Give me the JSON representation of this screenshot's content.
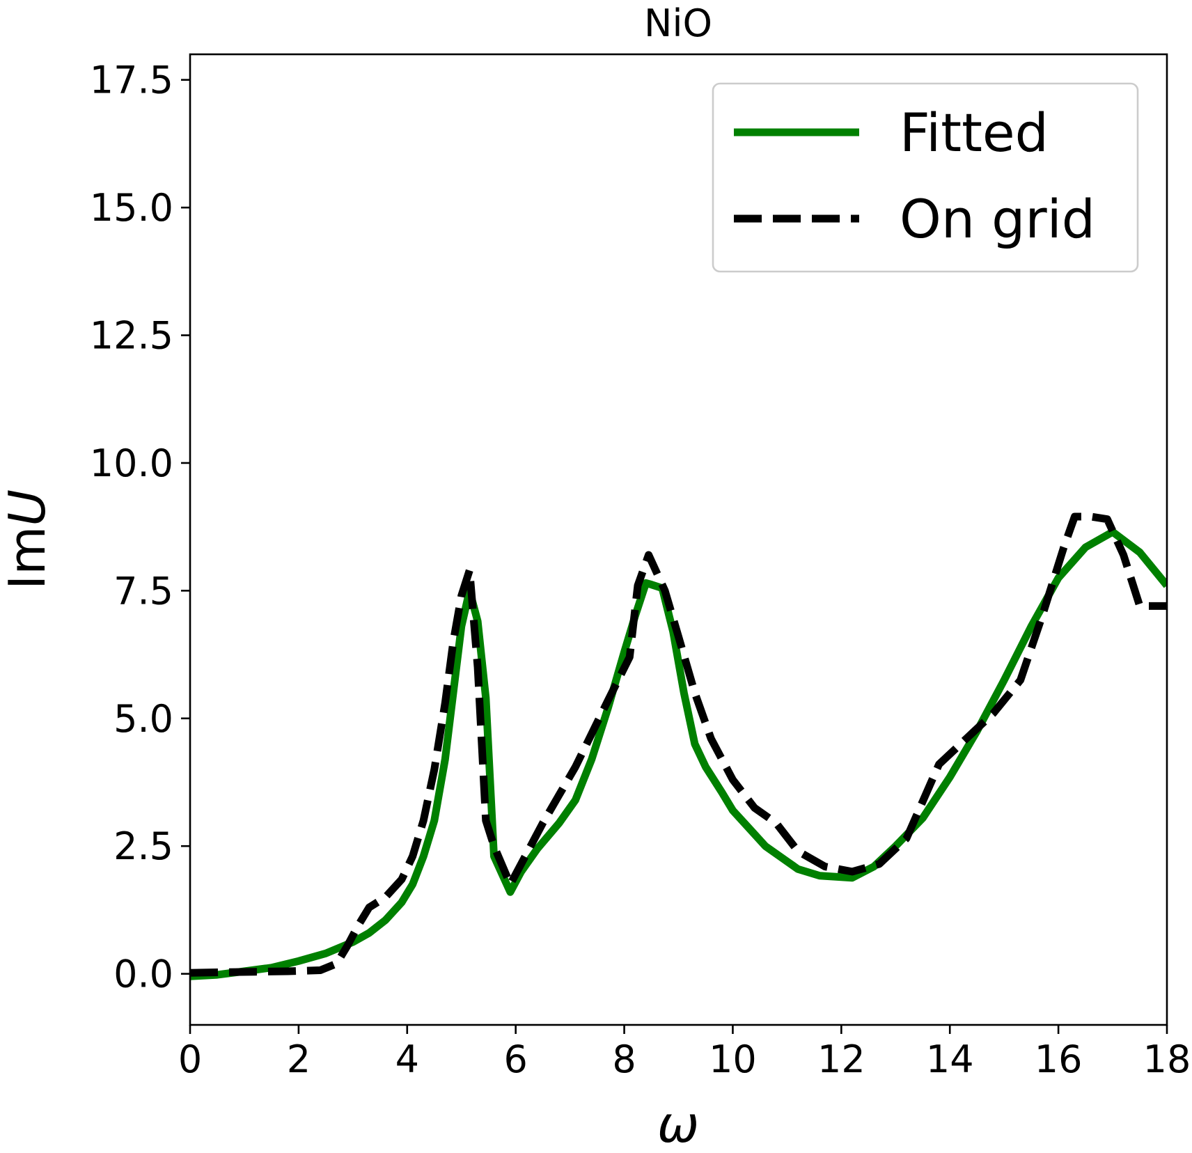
{
  "chart_data": {
    "type": "line",
    "title": "NiO",
    "xlabel": "ω",
    "ylabel_prefix": "Im",
    "ylabel_var": "U",
    "xlim": [
      0,
      18
    ],
    "ylim": [
      -1,
      18
    ],
    "x_ticks": [
      0,
      2,
      4,
      6,
      8,
      10,
      12,
      14,
      16,
      18
    ],
    "x_tick_labels": [
      "0",
      "2",
      "4",
      "6",
      "8",
      "10",
      "12",
      "14",
      "16",
      "18"
    ],
    "y_ticks": [
      0,
      2.5,
      5,
      7.5,
      10,
      12.5,
      15,
      17.5
    ],
    "y_tick_labels": [
      "0.0",
      "2.5",
      "5.0",
      "7.5",
      "10.0",
      "12.5",
      "15.0",
      "17.5"
    ],
    "grid": false,
    "legend_position": "top-right",
    "series": [
      {
        "name": "Fitted",
        "color": "#008000",
        "style": "solid",
        "x": [
          0,
          0.5,
          1,
          1.5,
          2,
          2.5,
          3,
          3.3,
          3.6,
          3.9,
          4.1,
          4.3,
          4.5,
          4.7,
          4.85,
          5.0,
          5.15,
          5.3,
          5.45,
          5.6,
          5.75,
          5.9,
          6.1,
          6.4,
          6.8,
          7.1,
          7.4,
          7.7,
          8.0,
          8.2,
          8.4,
          8.5,
          8.7,
          8.9,
          9.1,
          9.3,
          9.5,
          9.8,
          10.0,
          10.3,
          10.6,
          11.0,
          11.2,
          11.6,
          12.2,
          12.6,
          13.0,
          13.5,
          14.0,
          14.5,
          15.0,
          15.5,
          16.0,
          16.5,
          17.0,
          17.5,
          18.0
        ],
        "y": [
          -0.05,
          -0.02,
          0.05,
          0.12,
          0.25,
          0.4,
          0.62,
          0.8,
          1.05,
          1.4,
          1.75,
          2.3,
          3.0,
          4.2,
          5.5,
          6.8,
          7.5,
          6.9,
          5.4,
          2.3,
          1.95,
          1.6,
          2.0,
          2.45,
          2.95,
          3.4,
          4.2,
          5.2,
          6.3,
          7.0,
          7.65,
          7.62,
          7.55,
          6.7,
          5.5,
          4.5,
          4.05,
          3.55,
          3.2,
          2.85,
          2.5,
          2.2,
          2.05,
          1.92,
          1.88,
          2.1,
          2.5,
          3.05,
          3.85,
          4.75,
          5.75,
          6.8,
          7.75,
          8.35,
          8.65,
          8.25,
          7.6
        ]
      },
      {
        "name": "On grid",
        "color": "#000000",
        "style": "dashed",
        "x": [
          0,
          0.6,
          1.2,
          1.8,
          2.4,
          2.7,
          2.9,
          3.1,
          3.3,
          3.6,
          3.9,
          4.1,
          4.3,
          4.5,
          4.7,
          4.85,
          5.0,
          5.15,
          5.3,
          5.45,
          5.6,
          5.9,
          6.2,
          6.5,
          6.8,
          7.1,
          7.4,
          7.7,
          8.1,
          8.25,
          8.45,
          8.75,
          9.0,
          9.3,
          9.6,
          10.0,
          10.4,
          10.8,
          11.2,
          11.7,
          12.2,
          12.7,
          13.2,
          13.8,
          14.3,
          14.8,
          15.3,
          15.7,
          16.1,
          16.3,
          16.6,
          16.9,
          17.2,
          17.5,
          17.8,
          18.0
        ],
        "y": [
          0.02,
          0.03,
          0.04,
          0.05,
          0.07,
          0.2,
          0.55,
          0.95,
          1.3,
          1.5,
          1.85,
          2.3,
          3.0,
          4.0,
          5.3,
          6.5,
          7.4,
          7.9,
          6.0,
          3.0,
          2.5,
          1.75,
          2.35,
          2.95,
          3.5,
          4.05,
          4.7,
          5.35,
          6.2,
          7.6,
          8.2,
          7.5,
          6.6,
          5.5,
          4.6,
          3.8,
          3.25,
          2.95,
          2.4,
          2.1,
          2.0,
          2.15,
          2.65,
          4.1,
          4.6,
          5.1,
          5.75,
          7.0,
          8.35,
          8.95,
          8.95,
          8.9,
          8.2,
          7.2,
          7.2,
          7.2
        ]
      }
    ]
  }
}
